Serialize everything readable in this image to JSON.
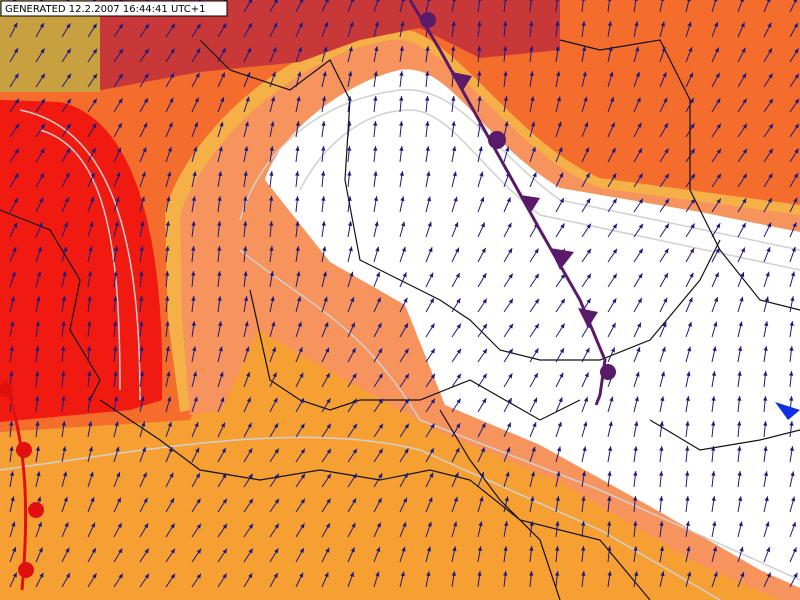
{
  "header": {
    "label": "GENERATED 12.2.2007 16:44:41 UTC+1"
  }
}
